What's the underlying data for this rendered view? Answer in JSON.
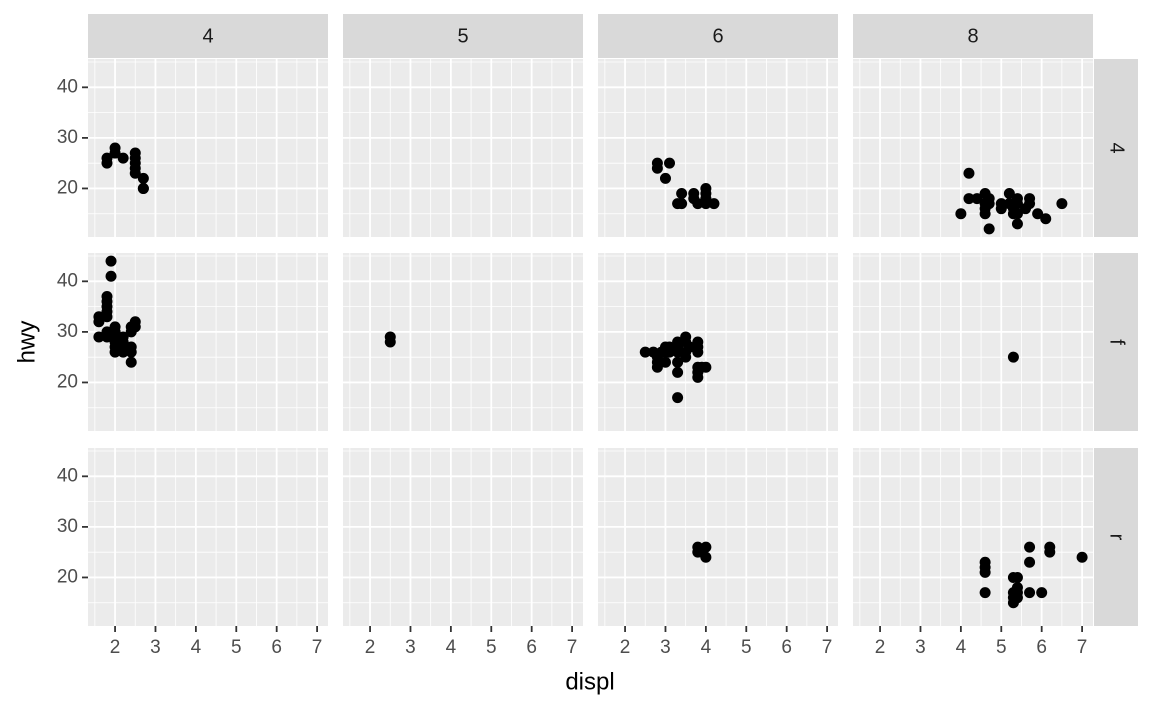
{
  "chart_data": {
    "type": "scatter",
    "xlabel": "displ",
    "ylabel": "hwy",
    "col_labels": [
      "4",
      "5",
      "6",
      "8"
    ],
    "row_labels": [
      "4",
      "f",
      "r"
    ],
    "xlim": [
      1.33,
      7.27
    ],
    "ylim": [
      10.4,
      45.6
    ],
    "xticks": [
      2,
      3,
      4,
      5,
      6,
      7
    ],
    "yticks": [
      20,
      30,
      40
    ],
    "xminor": [
      1.5,
      2.5,
      3.5,
      4.5,
      5.5,
      6.5
    ],
    "yminor": [
      15,
      25,
      35,
      45
    ],
    "grid": true,
    "panel_color": "#ebebeb",
    "strip_color": "#d9d9d9",
    "color": "#000000",
    "panels": [
      [
        {
          "x": [
            1.8,
            1.8,
            2.0,
            2.0,
            2.2,
            2.5,
            2.5,
            2.5,
            2.5,
            2.5,
            2.7,
            2.7,
            2.7
          ],
          "y": [
            26,
            25,
            28,
            27,
            26,
            27,
            26,
            25,
            23,
            24,
            22,
            20,
            20
          ]
        },
        {
          "x": [],
          "y": []
        },
        {
          "x": [
            2.8,
            2.8,
            3.1,
            3.0,
            3.3,
            3.4,
            3.4,
            3.7,
            3.7,
            4.0,
            4.0,
            4.0,
            4.0,
            4.2,
            3.8
          ],
          "y": [
            25,
            24,
            25,
            22,
            17,
            19,
            17,
            19,
            18,
            20,
            19,
            17,
            18,
            17,
            17
          ]
        },
        {
          "x": [
            4.2,
            4.0,
            4.2,
            4.4,
            4.6,
            4.6,
            4.6,
            4.6,
            4.7,
            4.7,
            4.7,
            5.0,
            5.2,
            5.2,
            5.3,
            5.3,
            5.4,
            5.4,
            5.4,
            5.7,
            5.7,
            5.9,
            6.1,
            6.5,
            5.4,
            5.6,
            5.0
          ],
          "y": [
            23,
            15,
            18,
            18,
            19,
            17,
            16,
            15,
            18,
            17,
            12,
            17,
            19,
            17,
            16,
            15,
            18,
            17,
            15,
            18,
            17,
            15,
            14,
            17,
            13,
            16,
            16
          ]
        }
      ],
      [
        {
          "x": [
            1.6,
            1.6,
            1.6,
            1.8,
            1.8,
            1.8,
            1.8,
            1.8,
            1.8,
            1.8,
            1.9,
            1.9,
            2.0,
            2.0,
            2.0,
            2.0,
            2.0,
            2.0,
            2.2,
            2.2,
            2.2,
            2.4,
            2.4,
            2.4,
            2.4,
            2.4,
            2.5,
            2.5,
            2.0,
            2.2
          ],
          "y": [
            32,
            33,
            29,
            29,
            30,
            33,
            34,
            35,
            36,
            37,
            44,
            41,
            31,
            30,
            29,
            28,
            27,
            26,
            28,
            27,
            29,
            31,
            30,
            27,
            26,
            24,
            32,
            31,
            30,
            26
          ]
        },
        {
          "x": [
            2.5,
            2.5
          ],
          "y": [
            29,
            28
          ]
        },
        {
          "x": [
            2.5,
            2.7,
            2.8,
            2.8,
            2.8,
            3.0,
            3.0,
            3.0,
            3.1,
            3.1,
            3.3,
            3.3,
            3.3,
            3.3,
            3.3,
            3.3,
            3.5,
            3.5,
            3.5,
            3.5,
            3.8,
            3.8,
            3.8,
            3.8,
            3.8,
            3.8,
            3.9,
            4.0,
            3.6,
            2.9
          ],
          "y": [
            26,
            26,
            24,
            23,
            25,
            26,
            27,
            24,
            26,
            27,
            28,
            27,
            26,
            24,
            22,
            17,
            29,
            28,
            26,
            25,
            28,
            27,
            26,
            23,
            22,
            21,
            23,
            23,
            27,
            26
          ]
        },
        {
          "x": [
            5.3
          ],
          "y": [
            25
          ]
        }
      ],
      [
        {
          "x": [],
          "y": []
        },
        {
          "x": [],
          "y": []
        },
        {
          "x": [
            3.8,
            3.8,
            4.0,
            4.0,
            3.9
          ],
          "y": [
            26,
            25,
            26,
            24,
            25
          ]
        },
        {
          "x": [
            4.6,
            4.6,
            4.6,
            4.6,
            5.3,
            5.3,
            5.3,
            5.3,
            5.4,
            5.4,
            5.4,
            5.7,
            5.7,
            5.7,
            6.0,
            6.2,
            6.2,
            7.0,
            5.4
          ],
          "y": [
            23,
            22,
            21,
            17,
            20,
            17,
            16,
            15,
            20,
            18,
            16,
            26,
            23,
            17,
            17,
            26,
            25,
            24,
            17
          ]
        }
      ]
    ]
  }
}
